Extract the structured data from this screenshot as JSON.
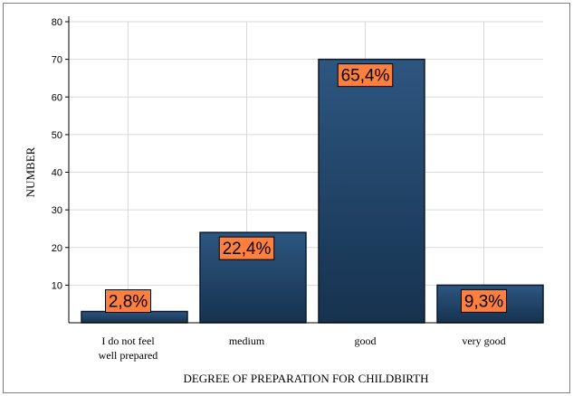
{
  "chart_data": {
    "type": "bar",
    "categories": [
      [
        "I do not feel",
        "well prepared"
      ],
      [
        "medium"
      ],
      [
        "good"
      ],
      [
        "very good"
      ]
    ],
    "values": [
      3,
      24,
      70,
      10
    ],
    "data_labels": [
      "2,8%",
      "22,4%",
      "65,4%",
      "9,3%"
    ],
    "title": "",
    "xlabel": "DEGREE OF PREPARATION FOR CHILDBIRTH",
    "ylabel": "NUMBER",
    "ylim": [
      0,
      80
    ],
    "yticks": [
      10,
      20,
      30,
      40,
      50,
      60,
      70,
      80
    ],
    "grid": true,
    "legend": "none",
    "colors": {
      "bar_fill_top": "#2d5680",
      "bar_fill_bottom": "#16324f",
      "bar_stroke": "#0b1a2c",
      "label_fill": "#ff7f3f",
      "grid": "#d9d9d9"
    }
  }
}
